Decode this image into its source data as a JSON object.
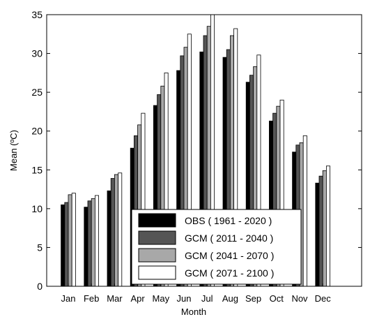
{
  "chart_data": {
    "type": "bar",
    "title": "",
    "xlabel": "Month",
    "ylabel": "Mean (ºC)",
    "ylim": [
      0,
      35
    ],
    "yticks": [
      0,
      5,
      10,
      15,
      20,
      25,
      30,
      35
    ],
    "grid": false,
    "legend_position": "bottom-center",
    "categories": [
      "Jan",
      "Feb",
      "Mar",
      "Apr",
      "May",
      "Jun",
      "Jul",
      "Aug",
      "Sep",
      "Oct",
      "Nov",
      "Dec"
    ],
    "series": [
      {
        "name": "OBS ( 1961 - 2020 )",
        "color": "#000000",
        "values": [
          10.5,
          10.2,
          12.3,
          17.8,
          23.3,
          27.8,
          30.2,
          29.5,
          26.3,
          21.3,
          17.3,
          13.3
        ]
      },
      {
        "name": "GCM ( 2011 - 2040 )",
        "color": "#555555",
        "values": [
          10.8,
          11.0,
          13.9,
          19.4,
          24.7,
          29.7,
          32.3,
          30.5,
          27.2,
          22.3,
          18.2,
          14.2
        ]
      },
      {
        "name": "GCM ( 2041 - 2070 )",
        "color": "#a8a8a8",
        "values": [
          11.8,
          11.3,
          14.4,
          20.8,
          25.8,
          30.8,
          33.5,
          32.3,
          28.3,
          23.2,
          18.5,
          14.9
        ]
      },
      {
        "name": "GCM ( 2071 - 2100 )",
        "color": "#ffffff",
        "values": [
          12.0,
          11.7,
          14.6,
          22.3,
          27.5,
          32.5,
          35.5,
          33.2,
          29.8,
          24.0,
          19.4,
          15.5
        ]
      }
    ]
  }
}
